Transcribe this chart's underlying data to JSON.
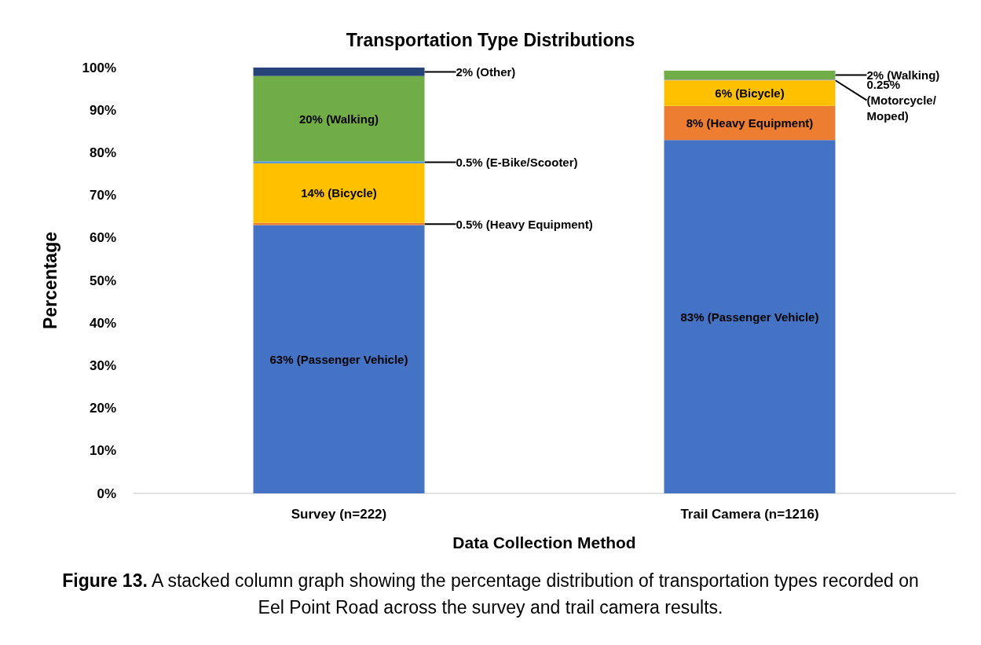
{
  "chart_data": {
    "type": "bar",
    "title": "Transportation Type Distributions",
    "xlabel": "Data Collection Method",
    "ylabel": "Percentage",
    "categories": [
      "Survey (n=222)",
      "Trail Camera (n=1216)"
    ],
    "stacked": true,
    "grid": false,
    "ylim": [
      0,
      100
    ],
    "yticks": [
      {
        "value": 0,
        "label": "0%"
      },
      {
        "value": 10,
        "label": "10%"
      },
      {
        "value": 20,
        "label": "20%"
      },
      {
        "value": 30,
        "label": "30%"
      },
      {
        "value": 40,
        "label": "40%"
      },
      {
        "value": 50,
        "label": "50%"
      },
      {
        "value": 60,
        "label": "60%"
      },
      {
        "value": 70,
        "label": "70%"
      },
      {
        "value": 80,
        "label": "80%"
      },
      {
        "value": 90,
        "label": "90%"
      },
      {
        "value": 100,
        "label": "100%"
      }
    ],
    "series": [
      {
        "color": "#4472c4",
        "values": [
          63,
          83
        ],
        "value_labels": [
          "63% (Passenger Vehicle)",
          "83% (Passenger Vehicle)"
        ]
      },
      {
        "color": "#ed7d31",
        "values": [
          0.5,
          8
        ],
        "value_labels": [
          "0.5% (Heavy Equipment)",
          "8% (Heavy Equipment)"
        ]
      },
      {
        "color": "#ffc000",
        "values": [
          14,
          6
        ],
        "value_labels": [
          "14% (Bicycle)",
          "6% (Bicycle)"
        ]
      },
      {
        "color": "#5b9bd5",
        "values": [
          0.5,
          null
        ],
        "value_labels": [
          "0.5% (E-Bike/Scooter)",
          null
        ]
      },
      {
        "color": "#a5a5a5",
        "values": [
          null,
          0.25
        ],
        "value_labels": [
          null,
          "0.25% (Motorcycle/ Moped)"
        ]
      },
      {
        "color": "#70ad47",
        "values": [
          20,
          2
        ],
        "value_labels": [
          "20% (Walking)",
          "2% (Walking)"
        ]
      },
      {
        "color": "#264478",
        "values": [
          2,
          null
        ],
        "value_labels": [
          "2% (Other)",
          null
        ]
      }
    ],
    "annotations": [
      "Figure 13.",
      "A stacked column graph showing the percentage distribution of transportation types recorded on Eel Point Road across the survey and trail camera results."
    ]
  }
}
